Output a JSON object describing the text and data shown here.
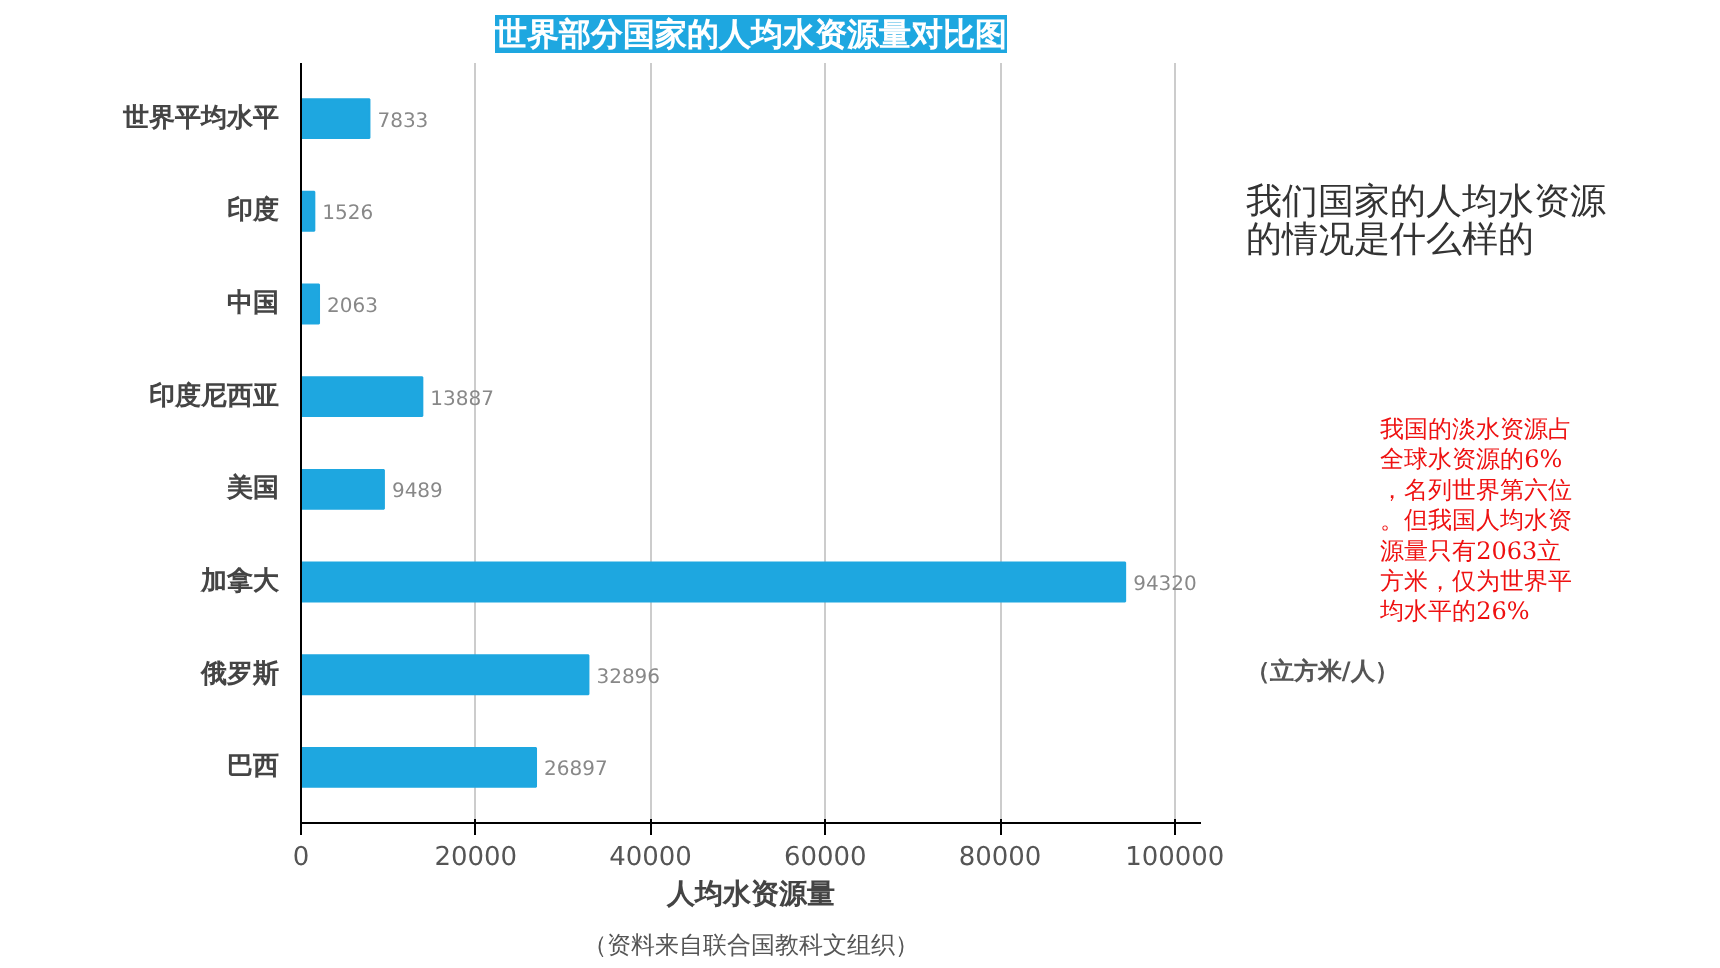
{
  "chart_data": {
    "type": "bar",
    "orientation": "horizontal",
    "title": "世界部分国家的人均水资源量对比图",
    "xlabel": "人均水资源量",
    "categories": [
      "世界平均水平",
      "印度",
      "中国",
      "印度尼西亚",
      "美国",
      "加拿大",
      "俄罗斯",
      "巴西"
    ],
    "values": [
      7833,
      1526,
      2063,
      13887,
      9489,
      94320,
      32896,
      26897
    ],
    "color": "#1ea7e0",
    "data_labels": true,
    "xlim": [
      0,
      103000
    ],
    "xticks": [
      0,
      20000,
      40000,
      60000,
      80000,
      100000
    ],
    "grid": "x",
    "annotations": [
      "（资料来自联合国教科文组织）",
      "（立方米/人）",
      "我们国家的人均水资源的情况是什么样的",
      "我国的淡水资源占全球水资源的6%，名列世界第六位。但我国人均水资源量只有2063立方米，仅为世界平均水平的26%"
    ]
  }
}
